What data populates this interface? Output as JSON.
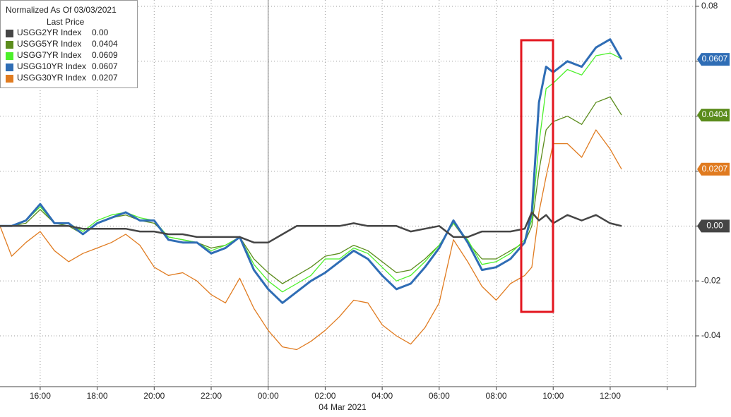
{
  "chart_data": {
    "type": "line",
    "legend_title": "Normalized As Of 03/03/2021",
    "legend_subtitle": "Last Price",
    "xlabel": "04 Mar 2021",
    "x": [
      14.59,
      15,
      15.5,
      16,
      16.5,
      17,
      17.5,
      18,
      18.5,
      19,
      19.5,
      20,
      20.5,
      21,
      21.5,
      22,
      22.5,
      23,
      23.5,
      24,
      24.5,
      25,
      25.5,
      26,
      26.5,
      27,
      27.5,
      28,
      28.5,
      29,
      29.5,
      30,
      30.5,
      31,
      31.5,
      32,
      32.5,
      33,
      33.25,
      33.5,
      33.75,
      34,
      34.5,
      35,
      35.5,
      36,
      36.4
    ],
    "series": [
      {
        "name": "USGG2YR Index",
        "color": "#454545",
        "last": {
          "value": 0,
          "label": "0.00"
        },
        "badge": true,
        "values": [
          0,
          0,
          0,
          0,
          0,
          0,
          -0.001,
          -0.001,
          -0.001,
          -0.001,
          -0.002,
          -0.002,
          -0.003,
          -0.003,
          -0.004,
          -0.004,
          -0.004,
          -0.004,
          -0.006,
          -0.006,
          -0.003,
          0,
          0,
          0,
          0,
          0.001,
          0,
          0,
          0,
          -0.002,
          -0.001,
          0,
          -0.004,
          -0.004,
          -0.002,
          -0.002,
          -0.002,
          -0.001,
          0.005,
          0.002,
          0.004,
          0.001,
          0.004,
          0.002,
          0.004,
          0.001,
          0
        ]
      },
      {
        "name": "USGG5YR Index",
        "color": "#5b8c1c",
        "last": 0.0404,
        "badge": true,
        "values": [
          0,
          0,
          0.001,
          0.006,
          0.001,
          0,
          -0.003,
          0.001,
          0.003,
          0.004,
          0.002,
          0.001,
          -0.004,
          -0.005,
          -0.006,
          -0.008,
          -0.007,
          -0.004,
          -0.012,
          -0.017,
          -0.021,
          -0.018,
          -0.015,
          -0.011,
          -0.01,
          -0.007,
          -0.009,
          -0.013,
          -0.017,
          -0.016,
          -0.012,
          -0.007,
          0.001,
          -0.006,
          -0.012,
          -0.012,
          -0.009,
          -0.006,
          0.0,
          0.02,
          0.035,
          0.038,
          0.04,
          0.037,
          0.045,
          0.047,
          0.0404
        ]
      },
      {
        "name": "USGG7YR Index",
        "color": "#4cf02a",
        "last": 0.0609,
        "badge": false,
        "values": [
          0,
          0,
          0.002,
          0.007,
          0.001,
          0.001,
          -0.002,
          0.002,
          0.004,
          0.005,
          0.003,
          0.002,
          -0.004,
          -0.005,
          -0.006,
          -0.009,
          -0.007,
          -0.004,
          -0.014,
          -0.02,
          -0.024,
          -0.021,
          -0.018,
          -0.012,
          -0.012,
          -0.008,
          -0.01,
          -0.015,
          -0.02,
          -0.018,
          -0.013,
          -0.007,
          0.001,
          -0.005,
          -0.014,
          -0.013,
          -0.01,
          -0.005,
          0.002,
          0.03,
          0.05,
          0.052,
          0.057,
          0.055,
          0.062,
          0.063,
          0.0609
        ]
      },
      {
        "name": "USGG10YR Index",
        "color": "#2f6db5",
        "last": 0.0607,
        "badge": true,
        "values": [
          0,
          0,
          0.002,
          0.008,
          0.001,
          0.001,
          -0.003,
          0.001,
          0.003,
          0.005,
          0.002,
          0.002,
          -0.005,
          -0.006,
          -0.006,
          -0.01,
          -0.008,
          -0.004,
          -0.016,
          -0.023,
          -0.028,
          -0.024,
          -0.02,
          -0.017,
          -0.013,
          -0.009,
          -0.012,
          -0.018,
          -0.023,
          -0.021,
          -0.015,
          -0.008,
          0.002,
          -0.006,
          -0.016,
          -0.015,
          -0.012,
          -0.006,
          0.005,
          0.045,
          0.058,
          0.056,
          0.06,
          0.058,
          0.065,
          0.068,
          0.0607
        ]
      },
      {
        "name": "USGG30YR Index",
        "color": "#e07b20",
        "last": 0.0207,
        "badge": true,
        "values": [
          0,
          -0.011,
          -0.006,
          -0.002,
          -0.009,
          -0.013,
          -0.01,
          -0.008,
          -0.006,
          -0.003,
          -0.007,
          -0.015,
          -0.018,
          -0.017,
          -0.02,
          -0.025,
          -0.028,
          -0.019,
          -0.03,
          -0.038,
          -0.044,
          -0.045,
          -0.042,
          -0.038,
          -0.033,
          -0.027,
          -0.028,
          -0.036,
          -0.04,
          -0.043,
          -0.037,
          -0.028,
          -0.005,
          -0.013,
          -0.022,
          -0.027,
          -0.021,
          -0.018,
          -0.015,
          0.005,
          0.018,
          0.03,
          0.03,
          0.025,
          0.035,
          0.028,
          0.0207
        ]
      }
    ],
    "xlim": [
      14.59,
      39.0
    ],
    "ylim": [
      -0.0585,
      0.0823
    ],
    "xticks": [
      {
        "value": 16,
        "label": "16:00"
      },
      {
        "value": 18,
        "label": "18:00"
      },
      {
        "value": 20,
        "label": "20:00"
      },
      {
        "value": 22,
        "label": "22:00"
      },
      {
        "value": 24,
        "label": "00:00"
      },
      {
        "value": 26,
        "label": "02:00"
      },
      {
        "value": 28,
        "label": "04:00"
      },
      {
        "value": 30,
        "label": "06:00"
      },
      {
        "value": 32,
        "label": "08:00"
      },
      {
        "value": 34,
        "label": "10:00"
      },
      {
        "value": 36,
        "label": "12:00"
      },
      {
        "value": 38,
        "label": ""
      }
    ],
    "yticks": [
      -0.04,
      -0.02,
      0,
      0.02,
      0.04,
      0.06,
      0.08
    ],
    "grid": true
  }
}
